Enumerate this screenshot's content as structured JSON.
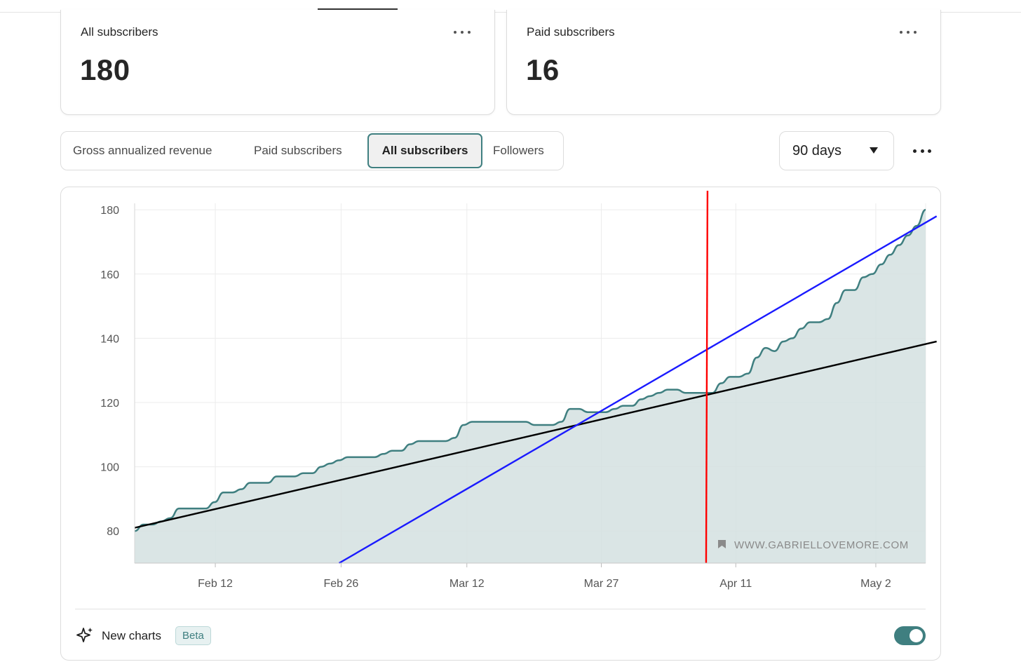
{
  "stats": [
    {
      "label": "All subscribers",
      "value": "180"
    },
    {
      "label": "Paid subscribers",
      "value": "16"
    }
  ],
  "tabs": [
    {
      "label": "Gross annualized revenue",
      "selected": false
    },
    {
      "label": "Paid subscribers",
      "selected": false
    },
    {
      "label": "All subscribers",
      "selected": true
    },
    {
      "label": "Followers",
      "selected": false
    }
  ],
  "range": {
    "value": "90 days"
  },
  "footer": {
    "new_charts_label": "New charts",
    "badge": "Beta",
    "toggle_on": true
  },
  "watermark": "WWW.GABRIELLOVEMORE.COM",
  "colors": {
    "accent": "#3f7f80",
    "area_fill": "#d3e0e0",
    "trend_full": "#000000",
    "trend_recent": "#1a1aff",
    "marker": "#ff0000"
  },
  "chart_data": {
    "type": "area",
    "y_ticks": [
      80,
      100,
      120,
      140,
      160,
      180
    ],
    "y_tick_labels": [
      "80",
      "100",
      "120",
      "140",
      "160",
      "180"
    ],
    "x_tick_labels": [
      "Feb 12",
      "Feb 26",
      "Mar 12",
      "Mar 27",
      "Apr 11",
      "May 2"
    ],
    "ylim": [
      70,
      182
    ],
    "grid": true,
    "series": [
      {
        "values": [
          80,
          82,
          82,
          83,
          84,
          87,
          87,
          87,
          87,
          89,
          92,
          92,
          93,
          95,
          95,
          95,
          97,
          97,
          97,
          98,
          98,
          100,
          101,
          102,
          103,
          103,
          103,
          103,
          104,
          105,
          105,
          107,
          108,
          108,
          108,
          108,
          109,
          113,
          114,
          114,
          114,
          114,
          114,
          114,
          114,
          113,
          113,
          113,
          114,
          118,
          118,
          117,
          117,
          117,
          118,
          119,
          119,
          121,
          122,
          123,
          124,
          124,
          123,
          123,
          123,
          123,
          126,
          128,
          128,
          129,
          134,
          137,
          136,
          139,
          140,
          143,
          145,
          145,
          146,
          151,
          155,
          155,
          159,
          160,
          163,
          166,
          169,
          172,
          175,
          180
        ]
      }
    ],
    "annotations": [
      {
        "kind": "trend-line",
        "name": "full-period trend",
        "from": [
          0,
          81
        ],
        "to": [
          90,
          139
        ]
      },
      {
        "kind": "trend-line",
        "name": "recent trend",
        "from": [
          23,
          70
        ],
        "to": [
          90,
          178
        ]
      },
      {
        "kind": "vertical-marker",
        "x": 64.3
      }
    ]
  }
}
